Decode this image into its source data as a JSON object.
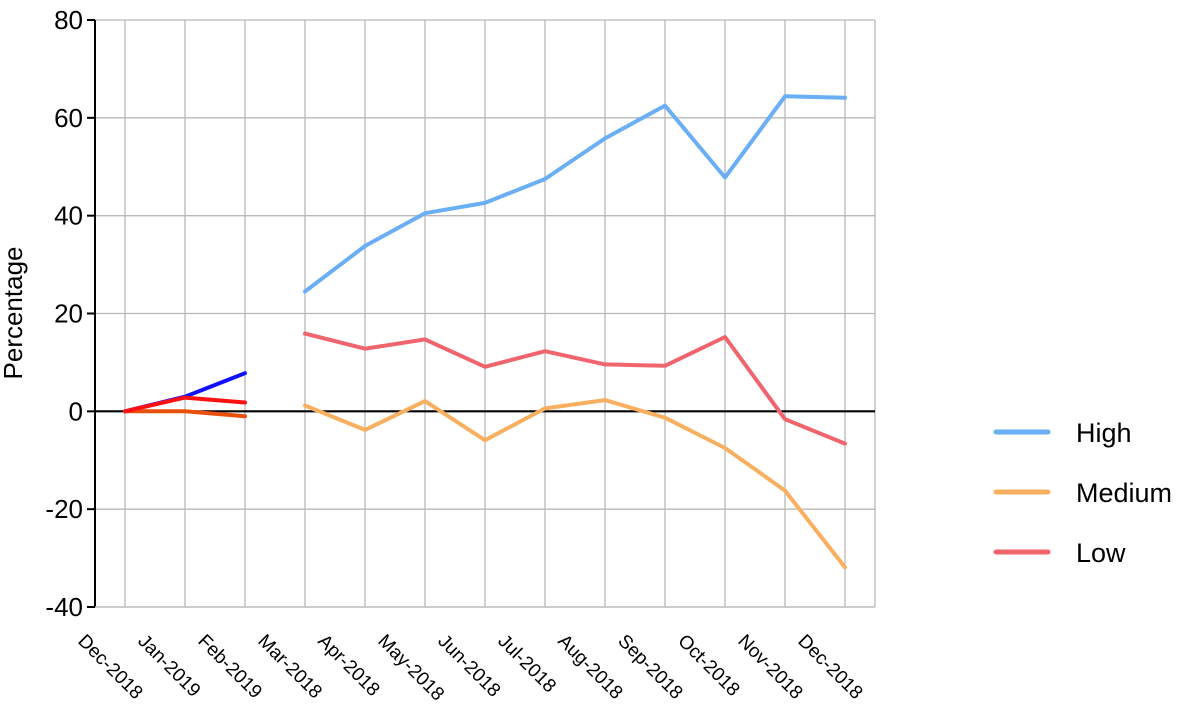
{
  "chart_data": {
    "type": "line",
    "ylabel": "Percentage",
    "xlabel": "",
    "ylim": [
      -40,
      80
    ],
    "yticks": [
      -40,
      -20,
      0,
      20,
      40,
      60,
      80
    ],
    "categories": [
      "Dec-2018",
      "Jan-2019",
      "Feb-2019",
      "Mar-2018",
      "Apr-2018",
      "May-2018",
      "Jun-2018",
      "Jul-2018",
      "Aug-2018",
      "Sep-2018",
      "Oct-2018",
      "Nov-2018",
      "Dec-2018"
    ],
    "grid": true,
    "legend_position": "right",
    "series": [
      {
        "name": "High",
        "color": "#6aaef5",
        "values": [
          null,
          null,
          null,
          24.5,
          33.8,
          40.5,
          42.6,
          47.5,
          55.8,
          62.5,
          47.8,
          64.4,
          64.1
        ]
      },
      {
        "name": "Medium",
        "color": "#f8b060",
        "values": [
          null,
          null,
          null,
          1.2,
          -3.8,
          2.1,
          -5.9,
          0.6,
          2.3,
          -1.3,
          -7.5,
          -16.2,
          -31.9
        ]
      },
      {
        "name": "Low",
        "color": "#f0646e",
        "values": [
          null,
          null,
          null,
          15.9,
          12.8,
          14.7,
          9.1,
          12.3,
          9.6,
          9.3,
          15.2,
          -1.6,
          -6.6
        ]
      }
    ],
    "secondary_series": [
      {
        "color": "#1010ff",
        "values": [
          0,
          3,
          7.8
        ]
      },
      {
        "color": "#e8500c",
        "values": [
          0,
          0,
          -1.0
        ]
      },
      {
        "color": "#ff1010",
        "values": [
          0,
          2.8,
          1.8
        ]
      }
    ]
  }
}
